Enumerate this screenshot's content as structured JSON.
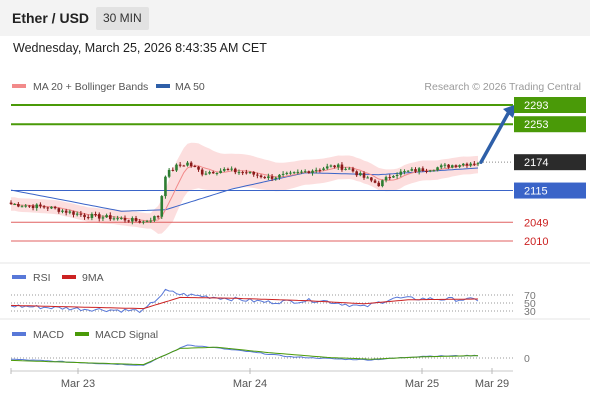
{
  "header": {
    "pair": "Ether / USD",
    "timeframe": "30 MIN",
    "datetime": "Wednesday, March 25, 2026 8:43:35 AM CET"
  },
  "colors": {
    "resistance": "#4a9a08",
    "pivot": "#3a64c8",
    "support": "#e06060",
    "last_price_bg": "#2b2b2b",
    "candle_up": "#2e7d32",
    "candle_down": "#8b1a1a",
    "bollinger": "#fbd3d3",
    "ma20": "#f28a8a",
    "ma50": "#3a64c8",
    "rsi": "#5878d8",
    "rsi_ma": "#cc2222",
    "macd": "#5878d8",
    "macd_signal": "#4a9a08",
    "arrow": "#2e5fa8"
  },
  "chart_data": [
    {
      "type": "candlestick",
      "legend": [
        {
          "name": "MA 20 + Bollinger Bands",
          "color": "#f28a8a"
        },
        {
          "name": "MA 50",
          "color": "#2e5fa8"
        }
      ],
      "credit": "Research © 2026 Trading Central",
      "x_ticks": [
        "Mar 23",
        "Mar 24",
        "Mar 25",
        "Mar 29"
      ],
      "ylim": [
        1990,
        2310
      ],
      "levels": [
        {
          "label": "2293",
          "value": 2293,
          "kind": "resistance"
        },
        {
          "label": "2253",
          "value": 2253,
          "kind": "resistance"
        },
        {
          "label": "2174",
          "value": 2174,
          "kind": "last"
        },
        {
          "label": "2115",
          "value": 2115,
          "kind": "pivot"
        },
        {
          "label": "2049",
          "value": 2049,
          "kind": "support"
        },
        {
          "label": "2010",
          "value": 2010,
          "kind": "support"
        }
      ],
      "price_anchors": [
        [
          0,
          2087
        ],
        [
          10,
          2080
        ],
        [
          20,
          2063
        ],
        [
          28,
          2058
        ],
        [
          36,
          2050
        ],
        [
          40,
          2062
        ],
        [
          42,
          2148
        ],
        [
          45,
          2165
        ],
        [
          48,
          2172
        ],
        [
          52,
          2152
        ],
        [
          58,
          2158
        ],
        [
          64,
          2152
        ],
        [
          70,
          2142
        ],
        [
          76,
          2148
        ],
        [
          82,
          2158
        ],
        [
          88,
          2166
        ],
        [
          92,
          2160
        ],
        [
          96,
          2142
        ],
        [
          100,
          2128
        ],
        [
          104,
          2150
        ],
        [
          110,
          2157
        ],
        [
          116,
          2163
        ],
        [
          122,
          2170
        ],
        [
          127,
          2174
        ]
      ],
      "bollinger_width_anchors": [
        [
          0,
          14
        ],
        [
          38,
          16
        ],
        [
          44,
          55
        ],
        [
          60,
          36
        ],
        [
          80,
          26
        ],
        [
          95,
          24
        ],
        [
          127,
          18
        ]
      ],
      "ma50_anchors": [
        [
          0,
          2116
        ],
        [
          30,
          2072
        ],
        [
          42,
          2075
        ],
        [
          60,
          2118
        ],
        [
          80,
          2152
        ],
        [
          100,
          2148
        ],
        [
          127,
          2162
        ]
      ],
      "projection": {
        "from": 2174,
        "to": 2293
      }
    },
    {
      "type": "line",
      "legend": [
        {
          "name": "RSI",
          "color": "#5878d8"
        },
        {
          "name": "9MA",
          "color": "#cc2222"
        }
      ],
      "y_ticks": [
        "70",
        "50",
        "30"
      ],
      "rsi_anchors": [
        [
          0,
          43
        ],
        [
          20,
          35
        ],
        [
          36,
          30
        ],
        [
          42,
          80
        ],
        [
          46,
          72
        ],
        [
          56,
          64
        ],
        [
          70,
          52
        ],
        [
          84,
          57
        ],
        [
          96,
          40
        ],
        [
          104,
          62
        ],
        [
          116,
          60
        ],
        [
          127,
          58
        ]
      ],
      "rsi_ma_anchors": [
        [
          0,
          44
        ],
        [
          36,
          36
        ],
        [
          46,
          64
        ],
        [
          60,
          62
        ],
        [
          80,
          56
        ],
        [
          96,
          48
        ],
        [
          108,
          58
        ],
        [
          127,
          60
        ]
      ]
    },
    {
      "type": "line",
      "legend": [
        {
          "name": "MACD",
          "color": "#5878d8"
        },
        {
          "name": "MACD Signal",
          "color": "#4a9a08"
        }
      ],
      "y_ticks": [
        "0"
      ],
      "macd_anchors": [
        [
          0,
          -2
        ],
        [
          20,
          -8
        ],
        [
          36,
          -12
        ],
        [
          42,
          5
        ],
        [
          48,
          22
        ],
        [
          54,
          18
        ],
        [
          64,
          11
        ],
        [
          76,
          2
        ],
        [
          90,
          -2
        ],
        [
          98,
          -3
        ],
        [
          112,
          3
        ],
        [
          127,
          4
        ]
      ],
      "signal_anchors": [
        [
          0,
          -4
        ],
        [
          36,
          -11
        ],
        [
          46,
          16
        ],
        [
          56,
          18
        ],
        [
          70,
          9
        ],
        [
          86,
          1
        ],
        [
          98,
          -2
        ],
        [
          112,
          2
        ],
        [
          127,
          4
        ]
      ]
    }
  ]
}
